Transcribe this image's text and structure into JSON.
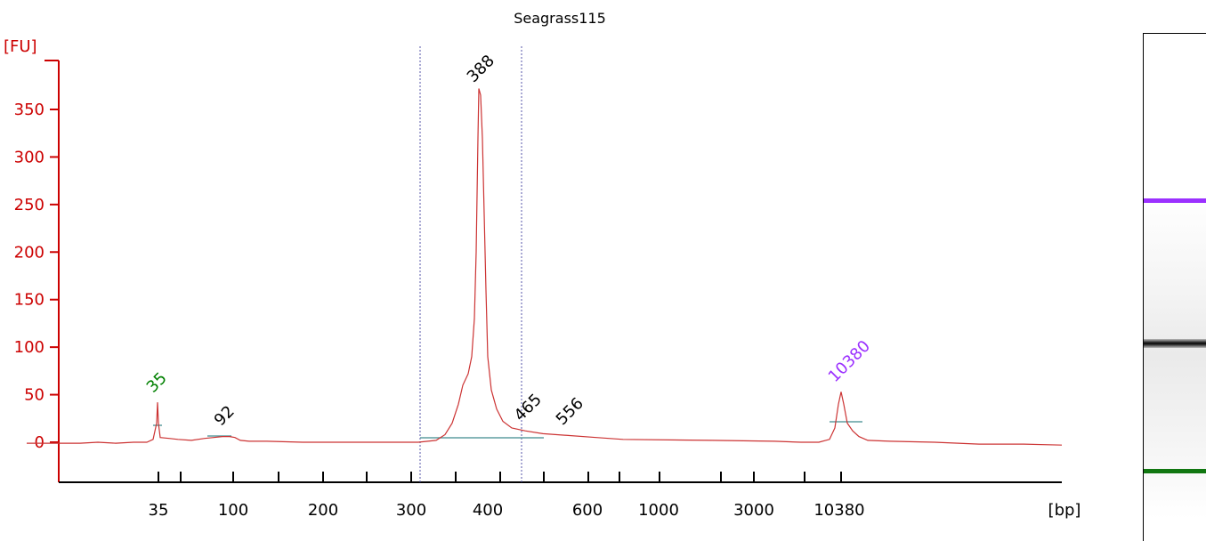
{
  "chart_data": {
    "type": "line",
    "title": "Seagrass115",
    "y_unit_label": "[FU]",
    "x_unit_label": "[bp]",
    "ylim": [
      -45,
      420
    ],
    "yticks": [
      0,
      50,
      100,
      150,
      200,
      250,
      300,
      350
    ],
    "xtick_labels": [
      "35",
      "100",
      "200",
      "300",
      "400",
      "600",
      "1000",
      "3000",
      "10380"
    ],
    "peaks": [
      {
        "label": "35",
        "color": "#008000",
        "height": 42
      },
      {
        "label": "92",
        "color": "#000000",
        "height": 7
      },
      {
        "label": "388",
        "color": "#000000",
        "height": 372
      },
      {
        "label": "465",
        "color": "#000000",
        "height": 12
      },
      {
        "label": "556",
        "color": "#000000",
        "height": 6
      },
      {
        "label": "10380",
        "color": "#9b30ff",
        "height": 53
      }
    ],
    "series": [
      {
        "color": "#cc3333",
        "points": [
          [
            30,
            -1
          ],
          [
            60,
            -1
          ],
          [
            90,
            -1
          ],
          [
            110,
            0
          ],
          [
            130,
            -1
          ],
          [
            150,
            0
          ],
          [
            165,
            0
          ],
          [
            172,
            3
          ],
          [
            176,
            20
          ],
          [
            177,
            42
          ],
          [
            178,
            20
          ],
          [
            180,
            5
          ],
          [
            190,
            4
          ],
          [
            200,
            3
          ],
          [
            215,
            2
          ],
          [
            230,
            4
          ],
          [
            240,
            5
          ],
          [
            250,
            6
          ],
          [
            258,
            6
          ],
          [
            264,
            5
          ],
          [
            270,
            2
          ],
          [
            280,
            1
          ],
          [
            300,
            1
          ],
          [
            340,
            0
          ],
          [
            380,
            0
          ],
          [
            420,
            0
          ],
          [
            450,
            0
          ],
          [
            470,
            0
          ],
          [
            490,
            2
          ],
          [
            500,
            8
          ],
          [
            508,
            20
          ],
          [
            515,
            40
          ],
          [
            520,
            60
          ],
          [
            526,
            72
          ],
          [
            530,
            90
          ],
          [
            533,
            130
          ],
          [
            535,
            200
          ],
          [
            537,
            320
          ],
          [
            538,
            372
          ],
          [
            540,
            365
          ],
          [
            542,
            320
          ],
          [
            544,
            240
          ],
          [
            546,
            160
          ],
          [
            548,
            90
          ],
          [
            552,
            55
          ],
          [
            558,
            35
          ],
          [
            565,
            22
          ],
          [
            575,
            15
          ],
          [
            590,
            12
          ],
          [
            610,
            9
          ],
          [
            640,
            7
          ],
          [
            670,
            5
          ],
          [
            700,
            3
          ],
          [
            800,
            2
          ],
          [
            870,
            1
          ],
          [
            900,
            0
          ],
          [
            920,
            0
          ],
          [
            932,
            3
          ],
          [
            938,
            15
          ],
          [
            942,
            40
          ],
          [
            945,
            53
          ],
          [
            948,
            40
          ],
          [
            952,
            20
          ],
          [
            958,
            12
          ],
          [
            965,
            6
          ],
          [
            975,
            2
          ],
          [
            1000,
            1
          ],
          [
            1050,
            0
          ],
          [
            1100,
            -2
          ],
          [
            1150,
            -2
          ],
          [
            1193,
            -3
          ]
        ]
      }
    ]
  }
}
